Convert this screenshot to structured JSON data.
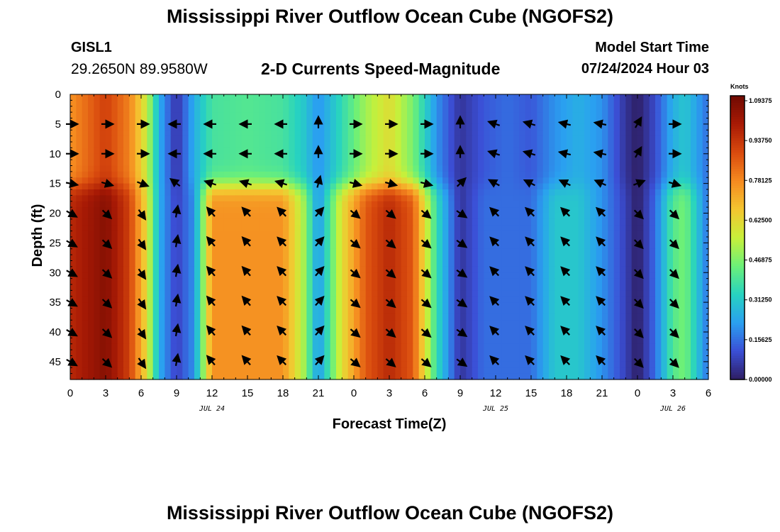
{
  "header": {
    "title": "Mississippi River Outflow Ocean Cube (NGOFS2)",
    "station_name": "GISL1",
    "station_coords": "29.2650N  89.9580W",
    "subtitle": "2-D Currents Speed-Magnitude",
    "model_start_label": "Model Start Time",
    "model_start_value": "07/24/2024 Hour 03"
  },
  "footer": {
    "title": "Mississippi River Outflow Ocean Cube (NGOFS2)"
  },
  "chart_data": {
    "type": "heatmap",
    "xlabel": "Forecast Time(Z)",
    "ylabel": "Depth (ft)",
    "x_tick_labels": [
      "0",
      "3",
      "6",
      "9",
      "12",
      "15",
      "18",
      "21",
      "0",
      "3",
      "6",
      "9",
      "12",
      "15",
      "18",
      "21",
      "0",
      "3",
      "6"
    ],
    "x_range_hours": [
      0,
      54
    ],
    "date_labels": [
      {
        "label": "JUL 24",
        "hour": 12
      },
      {
        "label": "JUL 25",
        "hour": 36
      },
      {
        "label": "JUL 26",
        "hour": 51
      }
    ],
    "y_tick_labels": [
      "0",
      "5",
      "10",
      "15",
      "20",
      "25",
      "30",
      "35",
      "40",
      "45"
    ],
    "y_range_ft": [
      0,
      48
    ],
    "colorbar": {
      "title": "Knots",
      "labels": [
        "1.09375",
        "0.93750",
        "0.78125",
        "0.62500",
        "0.46875",
        "0.31250",
        "0.15625",
        "0.00000"
      ],
      "range": [
        0,
        1.09375
      ],
      "colors": [
        "#2e1e63",
        "#3b4fd6",
        "#2aa0f0",
        "#27d3c0",
        "#6cf078",
        "#c8f03a",
        "#f4c530",
        "#f58a20",
        "#d94a0e",
        "#a81a05",
        "#6f0a02"
      ]
    },
    "speed_anchors_upper": [
      [
        0,
        0.75
      ],
      [
        3,
        0.9
      ],
      [
        5,
        0.78
      ],
      [
        6.5,
        0.55
      ],
      [
        7.5,
        0.25
      ],
      [
        9,
        0.05
      ],
      [
        10.5,
        0.25
      ],
      [
        12,
        0.38
      ],
      [
        15,
        0.4
      ],
      [
        18,
        0.38
      ],
      [
        19.8,
        0.3
      ],
      [
        21,
        0.2
      ],
      [
        23,
        0.35
      ],
      [
        25,
        0.5
      ],
      [
        27,
        0.6
      ],
      [
        29,
        0.45
      ],
      [
        31,
        0.2
      ],
      [
        33,
        0.05
      ],
      [
        35,
        0.12
      ],
      [
        37,
        0.15
      ],
      [
        39,
        0.12
      ],
      [
        41,
        0.2
      ],
      [
        43,
        0.25
      ],
      [
        45,
        0.2
      ],
      [
        47,
        0.05
      ],
      [
        48,
        0.0
      ],
      [
        49.5,
        0.1
      ],
      [
        51,
        0.25
      ],
      [
        52,
        0.3
      ],
      [
        54,
        0.15
      ]
    ],
    "speed_anchors_lower": [
      [
        0,
        0.95
      ],
      [
        3,
        1.05
      ],
      [
        5,
        0.9
      ],
      [
        6.5,
        0.6
      ],
      [
        7.5,
        0.25
      ],
      [
        9,
        0.08
      ],
      [
        10.5,
        0.2
      ],
      [
        12,
        0.75
      ],
      [
        15,
        0.75
      ],
      [
        18,
        0.75
      ],
      [
        19.8,
        0.5
      ],
      [
        21,
        0.2
      ],
      [
        23,
        0.6
      ],
      [
        25,
        0.85
      ],
      [
        27,
        0.95
      ],
      [
        29,
        0.85
      ],
      [
        31,
        0.35
      ],
      [
        33,
        0.05
      ],
      [
        35,
        0.15
      ],
      [
        37,
        0.15
      ],
      [
        39,
        0.15
      ],
      [
        41,
        0.3
      ],
      [
        43,
        0.3
      ],
      [
        45,
        0.2
      ],
      [
        47,
        0.08
      ],
      [
        48,
        0.0
      ],
      [
        49.5,
        0.15
      ],
      [
        51,
        0.4
      ],
      [
        52,
        0.45
      ],
      [
        54,
        0.15
      ]
    ],
    "vector_times": [
      0,
      3,
      6,
      9,
      12,
      15,
      18,
      21,
      24,
      27,
      30,
      33,
      36,
      39,
      42,
      45,
      48,
      51
    ],
    "vector_depths": [
      5,
      10,
      15,
      20,
      25,
      30,
      35,
      40,
      45
    ],
    "direction_anchors_deg_upper": [
      [
        0,
        0
      ],
      [
        6,
        0
      ],
      [
        7,
        180
      ],
      [
        11,
        180
      ],
      [
        20,
        180
      ],
      [
        22,
        0
      ],
      [
        30,
        0
      ],
      [
        32,
        20
      ],
      [
        34,
        160
      ],
      [
        46,
        170
      ],
      [
        48,
        60
      ],
      [
        50,
        0
      ],
      [
        54,
        0
      ]
    ],
    "direction_anchors_deg_lower": [
      [
        0,
        -30
      ],
      [
        7,
        -60
      ],
      [
        9,
        80
      ],
      [
        11,
        130
      ],
      [
        20,
        135
      ],
      [
        22,
        -40
      ],
      [
        32,
        -40
      ],
      [
        34,
        -30
      ],
      [
        36,
        135
      ],
      [
        46,
        135
      ],
      [
        48,
        -45
      ],
      [
        50,
        -45
      ],
      [
        54,
        -45
      ]
    ]
  }
}
